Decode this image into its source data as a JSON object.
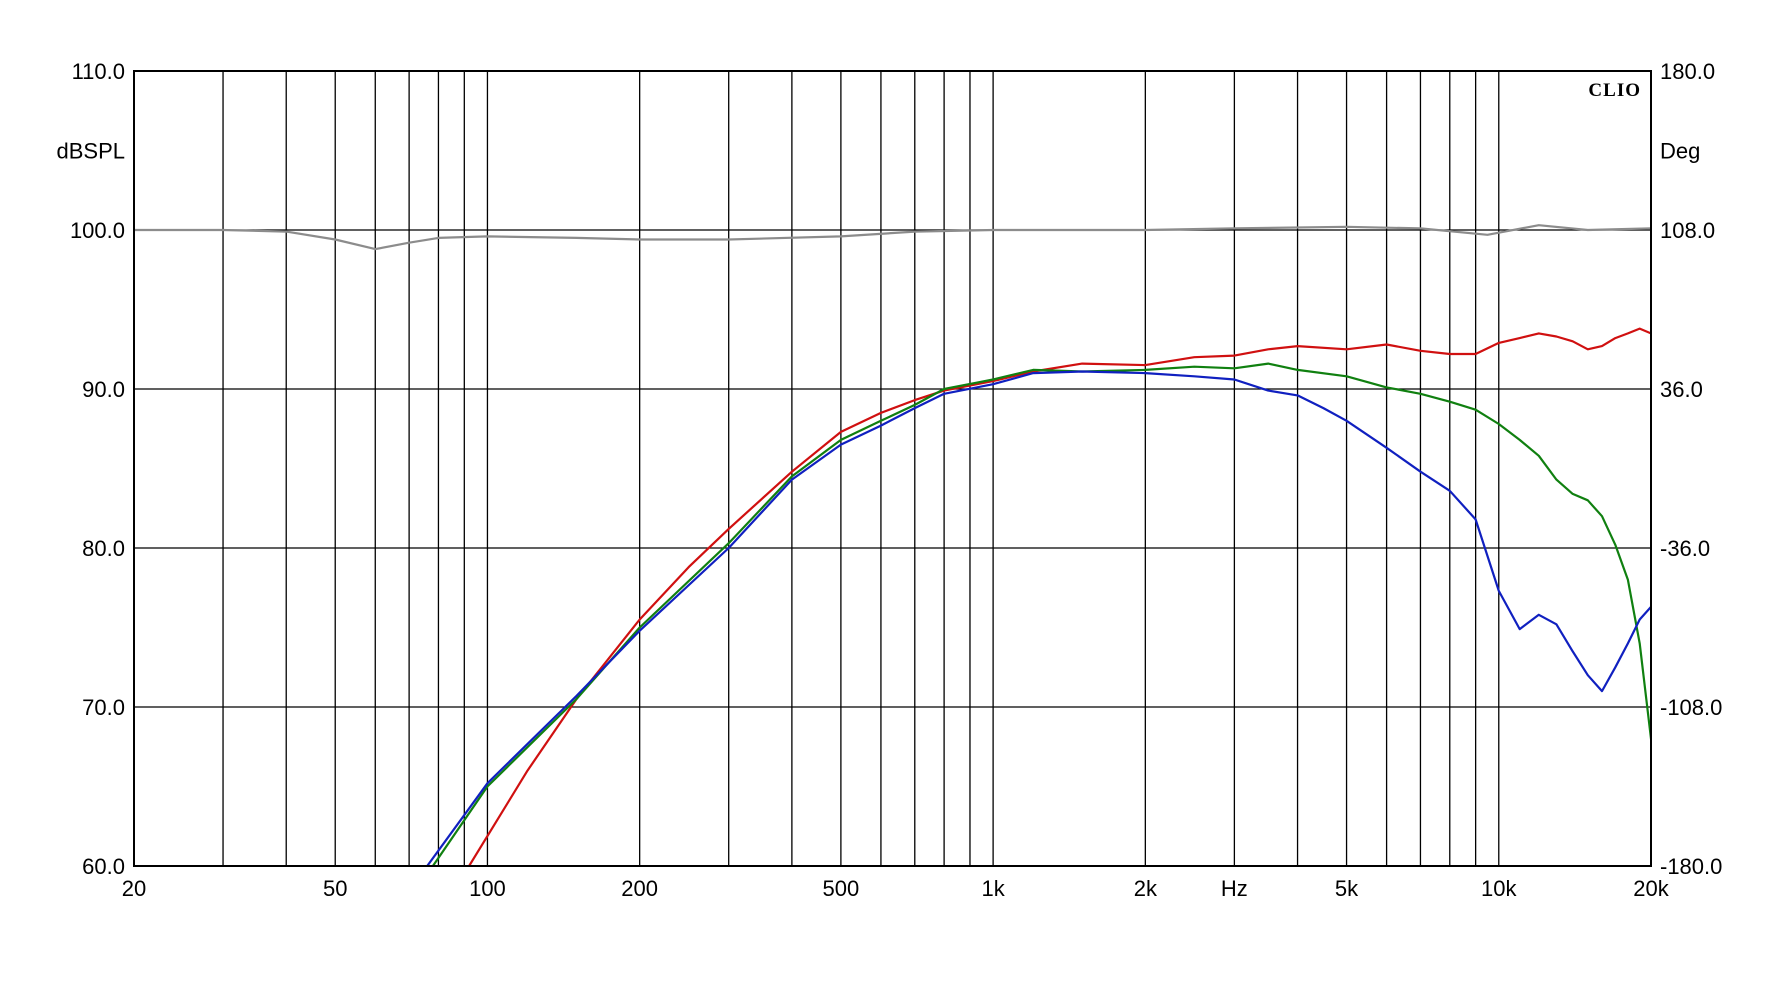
{
  "chart_data": {
    "type": "line",
    "logo": "CLIO",
    "xscale": "log",
    "xlim": [
      20,
      20000
    ],
    "ylim": [
      60,
      110
    ],
    "y2lim": [
      -180,
      180
    ],
    "grid": true,
    "ylabel": "dBSPL",
    "y2label": "Deg",
    "xlabel": "Hz",
    "x_tick_labels": [
      "20",
      "50",
      "100",
      "200",
      "500",
      "1k",
      "2k",
      "5k",
      "10k",
      "20k"
    ],
    "x_tick_values": [
      20,
      50,
      100,
      200,
      500,
      1000,
      2000,
      5000,
      10000,
      20000
    ],
    "y_tick_labels": [
      "110.0",
      "100.0",
      "90.0",
      "80.0",
      "70.0",
      "60.0"
    ],
    "y_tick_values": [
      110,
      100,
      90,
      80,
      70,
      60
    ],
    "y2_tick_labels": [
      "180.0",
      "108.0",
      "36.0",
      "-36.0",
      "-108.0",
      "-180.0"
    ],
    "y2_tick_values": [
      180,
      108,
      36,
      -36,
      -108,
      -180
    ],
    "series": [
      {
        "color": "#8c8c8c",
        "axis": "left",
        "x": [
          20,
          30,
          40,
          50,
          60,
          70,
          80,
          100,
          150,
          200,
          300,
          500,
          700,
          1000,
          2000,
          3000,
          5000,
          7000,
          9500,
          12000,
          15000,
          20000,
          21000
        ],
        "y": [
          100,
          100,
          99.9,
          99.4,
          98.8,
          99.2,
          99.5,
          99.6,
          99.5,
          99.4,
          99.4,
          99.6,
          99.9,
          100,
          100,
          100.1,
          100.2,
          100.1,
          99.7,
          100.3,
          100.0,
          100.1,
          99.8
        ]
      },
      {
        "color": "#d01010",
        "axis": "left",
        "x": [
          92,
          120,
          150,
          200,
          250,
          300,
          400,
          500,
          600,
          700,
          800,
          1000,
          1200,
          1500,
          2000,
          2500,
          3000,
          3500,
          4000,
          5000,
          6000,
          7000,
          8000,
          9000,
          10000,
          11000,
          12000,
          13000,
          14000,
          15000,
          16000,
          17000,
          18000,
          19000,
          20000,
          21000
        ],
        "y": [
          60,
          66,
          70.5,
          75.5,
          78.8,
          81.2,
          84.8,
          87.3,
          88.5,
          89.3,
          89.9,
          90.5,
          91.1,
          91.6,
          91.5,
          92,
          92.1,
          92.5,
          92.7,
          92.5,
          92.8,
          92.4,
          92.2,
          92.2,
          92.9,
          93.2,
          93.5,
          93.3,
          93.0,
          92.5,
          92.7,
          93.2,
          93.5,
          93.8,
          93.5,
          92.0
        ]
      },
      {
        "color": "#108010",
        "axis": "left",
        "x": [
          78,
          100,
          150,
          200,
          300,
          400,
          500,
          600,
          700,
          800,
          1000,
          1200,
          1500,
          2000,
          2500,
          3000,
          3500,
          4000,
          5000,
          6000,
          7000,
          8000,
          9000,
          10000,
          11000,
          12000,
          13000,
          14000,
          15000,
          16000,
          17000,
          18000,
          19000,
          20000,
          21000,
          22000
        ],
        "y": [
          60,
          65,
          70.5,
          75,
          80.3,
          84.5,
          86.8,
          88.0,
          89.0,
          90.0,
          90.6,
          91.2,
          91.1,
          91.2,
          91.4,
          91.3,
          91.6,
          91.2,
          90.8,
          90.1,
          89.7,
          89.2,
          88.7,
          87.8,
          86.8,
          85.8,
          84.3,
          83.4,
          83.0,
          82.0,
          80.2,
          78.0,
          74.0,
          68.0,
          63.3,
          69.0
        ]
      },
      {
        "color": "#1020c0",
        "axis": "left",
        "x": [
          76,
          100,
          150,
          200,
          300,
          400,
          500,
          600,
          700,
          800,
          1000,
          1200,
          1500,
          2000,
          2500,
          3000,
          3500,
          4000,
          4500,
          5000,
          6000,
          7000,
          8000,
          9000,
          10000,
          11000,
          12000,
          13000,
          14000,
          15000,
          16000,
          17000,
          18000,
          19000,
          20000,
          21000
        ],
        "y": [
          60,
          65.2,
          70.7,
          74.8,
          80.0,
          84.3,
          86.5,
          87.7,
          88.8,
          89.7,
          90.3,
          91.0,
          91.1,
          91.0,
          90.8,
          90.6,
          89.9,
          89.6,
          88.8,
          88.0,
          86.3,
          84.8,
          83.6,
          81.8,
          77.3,
          74.9,
          75.8,
          75.2,
          73.5,
          72.0,
          71.0,
          72.5,
          74.0,
          75.5,
          76.3,
          76.8
        ]
      }
    ]
  }
}
